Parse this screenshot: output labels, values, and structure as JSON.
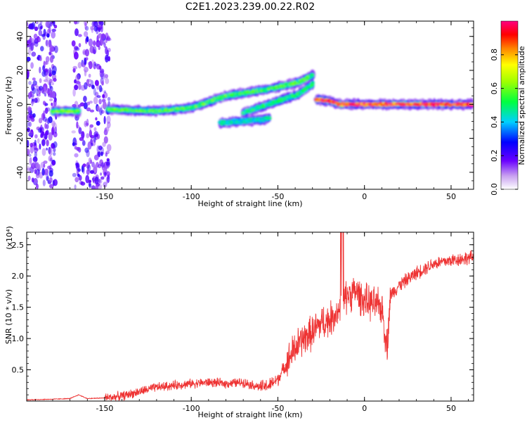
{
  "title": "C2E1.2023.239.00.22.R02",
  "chart_data": [
    {
      "type": "heatmap",
      "xlabel": "Height of straight line (km)",
      "ylabel": "Frequency (Hz)",
      "xlim": [
        -195,
        63
      ],
      "ylim": [
        -50,
        49
      ],
      "xticks": [
        -150,
        -100,
        -50,
        0,
        50
      ],
      "xtick_labels": [
        "-150",
        "-100",
        "-50",
        "0",
        "50"
      ],
      "yticks": [
        -40,
        -20,
        0,
        20,
        40
      ],
      "ytick_labels": [
        "-40",
        "-20",
        "0",
        "20",
        "40"
      ],
      "grid": false,
      "colorbar": {
        "label": "Normalized spectral amplitude",
        "range": [
          0,
          1
        ],
        "ticks": [
          0.0,
          0.2,
          0.4,
          0.6,
          0.8
        ],
        "tick_labels": [
          "0.0",
          "0.2",
          "0.4",
          "0.6",
          "0.8"
        ]
      },
      "features": [
        {
          "kind": "broadband-noise",
          "x_range": [
            -195,
            -178
          ],
          "y_range": [
            -50,
            49
          ],
          "amplitude": 0.1
        },
        {
          "kind": "broadband-noise",
          "x_range": [
            -168,
            -147
          ],
          "y_range": [
            -50,
            49
          ],
          "amplitude": 0.1
        },
        {
          "kind": "ridge",
          "points": [
            [
              -180,
              -4
            ],
            [
              -165,
              -4
            ]
          ],
          "amplitude": 0.6
        },
        {
          "kind": "ridge",
          "points": [
            [
              -148,
              -3
            ],
            [
              -120,
              -4
            ],
            [
              -100,
              -2
            ],
            [
              -80,
              5
            ],
            [
              -55,
              9
            ],
            [
              -38,
              13
            ],
            [
              -30,
              17
            ]
          ],
          "amplitude": 0.55
        },
        {
          "kind": "ridge",
          "points": [
            [
              -70,
              -5
            ],
            [
              -50,
              2
            ],
            [
              -38,
              6
            ],
            [
              -30,
              12
            ]
          ],
          "amplitude": 0.5
        },
        {
          "kind": "ridge",
          "points": [
            [
              -83,
              -11
            ],
            [
              -60,
              -9
            ],
            [
              -55,
              -8
            ]
          ],
          "amplitude": 0.45
        },
        {
          "kind": "ridge",
          "points": [
            [
              -28,
              3
            ],
            [
              -20,
              2
            ],
            [
              -15,
              0
            ],
            [
              0,
              0
            ],
            [
              20,
              0
            ],
            [
              40,
              0
            ],
            [
              62,
              0
            ]
          ],
          "amplitude": 0.95
        }
      ]
    },
    {
      "type": "line",
      "xlabel": "Height of straight line (km)",
      "ylabel": "SNR (10 * v/v)",
      "y_multiplier": "(x10⁴)",
      "xlim": [
        -195,
        63
      ],
      "ylim": [
        0,
        2.7
      ],
      "xticks": [
        -150,
        -100,
        -50,
        0,
        50
      ],
      "xtick_labels": [
        "-150",
        "-100",
        "-50",
        "0",
        "50"
      ],
      "yticks": [
        0.5,
        1.0,
        1.5,
        2.0,
        2.5
      ],
      "ytick_labels": [
        "0.5",
        "1.0",
        "1.5",
        "2.0",
        "2.5"
      ],
      "grid": false,
      "series": [
        {
          "x": [
            -195,
            -180,
            -170,
            -165,
            -160,
            -150,
            -140,
            -130,
            -120,
            -110,
            -100,
            -90,
            -80,
            -70,
            -60,
            -55,
            -50,
            -45,
            -40,
            -35,
            -30,
            -25,
            -20,
            -15,
            -13,
            -10,
            -5,
            0,
            5,
            10,
            13,
            15,
            20,
            30,
            40,
            50,
            63
          ],
          "y": [
            0.02,
            0.03,
            0.04,
            0.1,
            0.04,
            0.05,
            0.08,
            0.15,
            0.22,
            0.25,
            0.28,
            0.3,
            0.28,
            0.3,
            0.22,
            0.25,
            0.35,
            0.6,
            0.85,
            1.0,
            1.1,
            1.25,
            1.3,
            1.45,
            1.5,
            1.7,
            1.75,
            1.6,
            1.55,
            1.5,
            0.85,
            1.7,
            1.85,
            2.05,
            2.2,
            2.25,
            2.3
          ]
        }
      ]
    }
  ]
}
